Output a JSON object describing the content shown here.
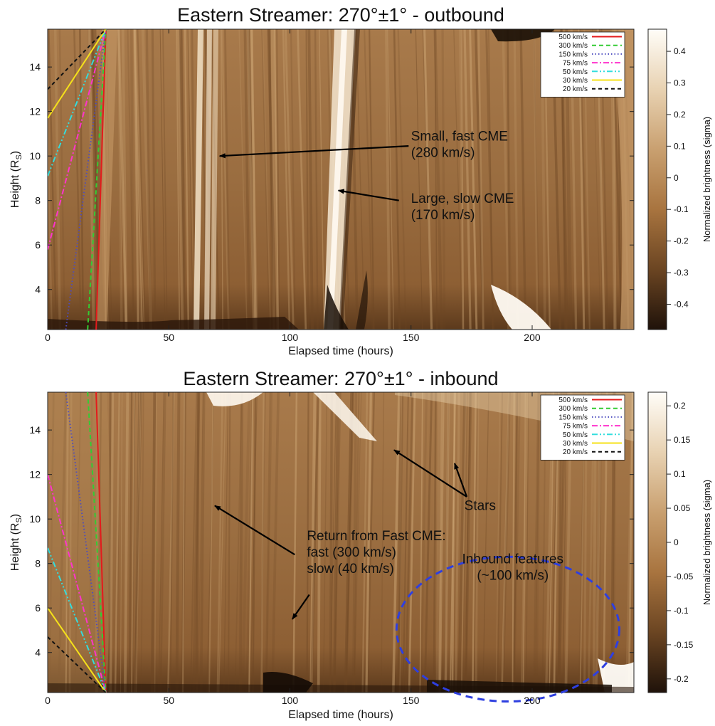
{
  "chart_data": [
    {
      "type": "heatmap",
      "title": "Eastern Streamer: 270°±1° - outbound",
      "xlabel": "Elapsed time (hours)",
      "ylabel": "Height (R",
      "ylabel_sub": "S",
      "ylabel_end": ")",
      "xlim": [
        0,
        242
      ],
      "ylim": [
        2.2,
        15.7
      ],
      "xticks": [
        "0",
        "50",
        "100",
        "150",
        "200"
      ],
      "xtick_values": [
        0,
        50,
        100,
        150,
        200
      ],
      "yticks": [
        "4",
        "6",
        "8",
        "10",
        "12",
        "14"
      ],
      "ytick_values": [
        4,
        6,
        8,
        10,
        12,
        14
      ],
      "colorbar": {
        "label": "Normalized brightness (sigma)",
        "range": [
          -0.48,
          0.47
        ],
        "ticks": [
          "0.4",
          "0.3",
          "0.2",
          "0.1",
          "0",
          "-0.1",
          "-0.2",
          "-0.3",
          "-0.4"
        ],
        "tick_values": [
          0.4,
          0.3,
          0.2,
          0.1,
          0,
          -0.1,
          -0.2,
          -0.3,
          -0.4
        ],
        "colors": [
          "#1f120a",
          "#6b4522",
          "#a8743f",
          "#c9a070",
          "#e8d2b2",
          "#fffdf8"
        ]
      },
      "legend_position": "top-right",
      "series": [
        {
          "name": "500 km/s",
          "color": "#e41a1c",
          "dash": "",
          "x": [
            20,
            24
          ],
          "y": [
            2.2,
            15.7
          ]
        },
        {
          "name": "300 km/s",
          "color": "#33cc33",
          "dash": "6,4",
          "x": [
            16.5,
            24
          ],
          "y": [
            2.2,
            15.7
          ]
        },
        {
          "name": "150 km/s",
          "color": "#4c4cbf",
          "dash": "1.5,3",
          "x": [
            7.5,
            24
          ],
          "y": [
            2.2,
            15.7
          ]
        },
        {
          "name": "75 km/s",
          "color": "#ff33cc",
          "dash": "8,3,2,3",
          "x": [
            0,
            24
          ],
          "y": [
            5.8,
            15.7
          ]
        },
        {
          "name": "50 km/s",
          "color": "#33dddd",
          "dash": "8,3,2,3,2,3",
          "x": [
            0,
            24
          ],
          "y": [
            9.1,
            15.7
          ]
        },
        {
          "name": "30 km/s",
          "color": "#f5e11a",
          "dash": "",
          "x": [
            0,
            24
          ],
          "y": [
            11.7,
            15.7
          ]
        },
        {
          "name": "20 km/s",
          "color": "#111111",
          "dash": "5,4",
          "x": [
            0,
            24
          ],
          "y": [
            13.0,
            15.7
          ]
        }
      ],
      "annotations": [
        {
          "lines": [
            "Small, fast CME",
            "(280 km/s)"
          ],
          "text_at": [
            150,
            10.7
          ],
          "arrow_from": [
            149,
            10.45
          ],
          "arrow_to": [
            71,
            10.0
          ]
        },
        {
          "lines": [
            "Large, slow CME",
            "(170 km/s)"
          ],
          "text_at": [
            150,
            7.9
          ],
          "arrow_from": [
            145,
            8.0
          ],
          "arrow_to": [
            120,
            8.45
          ]
        }
      ]
    },
    {
      "type": "heatmap",
      "title": "Eastern Streamer: 270°±1° - inbound",
      "xlabel": "Elapsed time (hours)",
      "ylabel": "Height (R",
      "ylabel_sub": "S",
      "ylabel_end": ")",
      "xlim": [
        0,
        242
      ],
      "ylim": [
        2.2,
        15.7
      ],
      "xticks": [
        "0",
        "50",
        "100",
        "150",
        "200"
      ],
      "xtick_values": [
        0,
        50,
        100,
        150,
        200
      ],
      "yticks": [
        "4",
        "6",
        "8",
        "10",
        "12",
        "14"
      ],
      "ytick_values": [
        4,
        6,
        8,
        10,
        12,
        14
      ],
      "colorbar": {
        "label": "Normalized brightness (sigma)",
        "range": [
          -0.22,
          0.22
        ],
        "ticks": [
          "0.2",
          "0.15",
          "0.1",
          "0.05",
          "0",
          "-0.05",
          "-0.1",
          "-0.15",
          "-0.2"
        ],
        "tick_values": [
          0.2,
          0.15,
          0.1,
          0.05,
          0,
          -0.05,
          -0.1,
          -0.15,
          -0.2
        ],
        "colors": [
          "#1f120a",
          "#6b4522",
          "#a8743f",
          "#c9a070",
          "#e8d2b2",
          "#fffdf8"
        ]
      },
      "legend_position": "top-right",
      "series": [
        {
          "name": "500 km/s",
          "color": "#e41a1c",
          "dash": "",
          "x": [
            20,
            24
          ],
          "y": [
            15.7,
            2.2
          ]
        },
        {
          "name": "300 km/s",
          "color": "#33cc33",
          "dash": "6,4",
          "x": [
            16.5,
            24
          ],
          "y": [
            15.7,
            2.2
          ]
        },
        {
          "name": "150 km/s",
          "color": "#4c4cbf",
          "dash": "1.5,3",
          "x": [
            7.5,
            24
          ],
          "y": [
            15.7,
            2.2
          ]
        },
        {
          "name": "75 km/s",
          "color": "#ff33cc",
          "dash": "8,3,2,3",
          "x": [
            0,
            24
          ],
          "y": [
            12.0,
            2.2
          ]
        },
        {
          "name": "50 km/s",
          "color": "#33dddd",
          "dash": "8,3,2,3,2,3",
          "x": [
            0,
            24
          ],
          "y": [
            8.7,
            2.2
          ]
        },
        {
          "name": "30 km/s",
          "color": "#f5e11a",
          "dash": "",
          "x": [
            0,
            24
          ],
          "y": [
            6.0,
            2.2
          ]
        },
        {
          "name": "20 km/s",
          "color": "#111111",
          "dash": "5,4",
          "x": [
            0,
            24
          ],
          "y": [
            4.7,
            2.2
          ]
        }
      ],
      "annotations": [
        {
          "lines": [
            "Stars"
          ],
          "text_at": [
            172,
            10.4
          ],
          "arrow_from": [
            173,
            11.0
          ],
          "arrow_to": [
            143,
            13.1
          ]
        },
        {
          "lines": [
            "Stars"
          ],
          "text_at": null,
          "arrow_from": [
            173,
            11.0
          ],
          "arrow_to": [
            168,
            12.5
          ]
        },
        {
          "lines": [
            "Return from Fast CME:",
            "fast (300 km/s)",
            "slow (40 km/s)"
          ],
          "text_at": [
            107,
            9.05
          ],
          "arrow_from": [
            102,
            8.4
          ],
          "arrow_to": [
            69,
            10.6
          ]
        },
        {
          "lines": [],
          "text_at": null,
          "arrow_from": [
            108,
            6.6
          ],
          "arrow_to": [
            101,
            5.5
          ]
        },
        {
          "lines": [
            "Inbound features",
            "(~100 km/s)"
          ],
          "text_at": [
            192,
            8.0
          ],
          "arrow_from": null,
          "arrow_to": null
        }
      ],
      "ellipse": {
        "color": "#2e3fe0",
        "center": [
          190,
          5.05
        ],
        "radius": [
          46,
          3.25
        ]
      }
    }
  ]
}
